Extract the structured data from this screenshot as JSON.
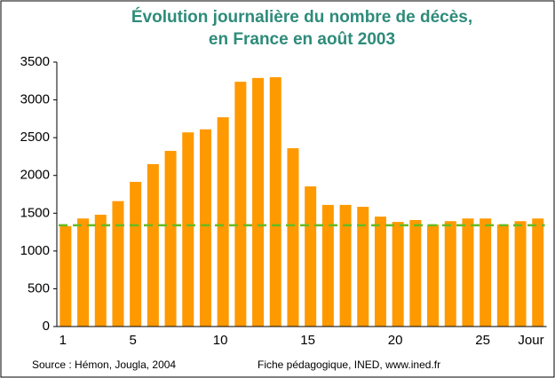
{
  "chart_data": {
    "type": "bar",
    "title": [
      "Évolution journalière du nombre de décès,",
      "en France en août 2003"
    ],
    "x_label": "Jour",
    "categories": [
      "1",
      null,
      null,
      null,
      "5",
      null,
      null,
      null,
      null,
      "10",
      null,
      null,
      null,
      null,
      "15",
      null,
      null,
      null,
      null,
      "20",
      null,
      null,
      null,
      null,
      "25",
      null,
      null,
      null
    ],
    "values": [
      1330,
      1430,
      1480,
      1660,
      1915,
      2150,
      2325,
      2570,
      2610,
      2770,
      3240,
      3290,
      3300,
      2360,
      1855,
      1610,
      1610,
      1585,
      1455,
      1385,
      1410,
      1350,
      1395,
      1430,
      1430,
      1350,
      1395,
      1430
    ],
    "color": "#ff9900",
    "reference_line": {
      "value": 1340,
      "color": "#66bb22"
    },
    "ylim": [
      0,
      3500
    ],
    "yticks": [
      0,
      500,
      1000,
      1500,
      2000,
      2500,
      3000,
      3500
    ],
    "footer": [
      "Source : Hémon, Jougla, 2004",
      "Fiche pédagogique, INED, www.ined.fr"
    ]
  }
}
